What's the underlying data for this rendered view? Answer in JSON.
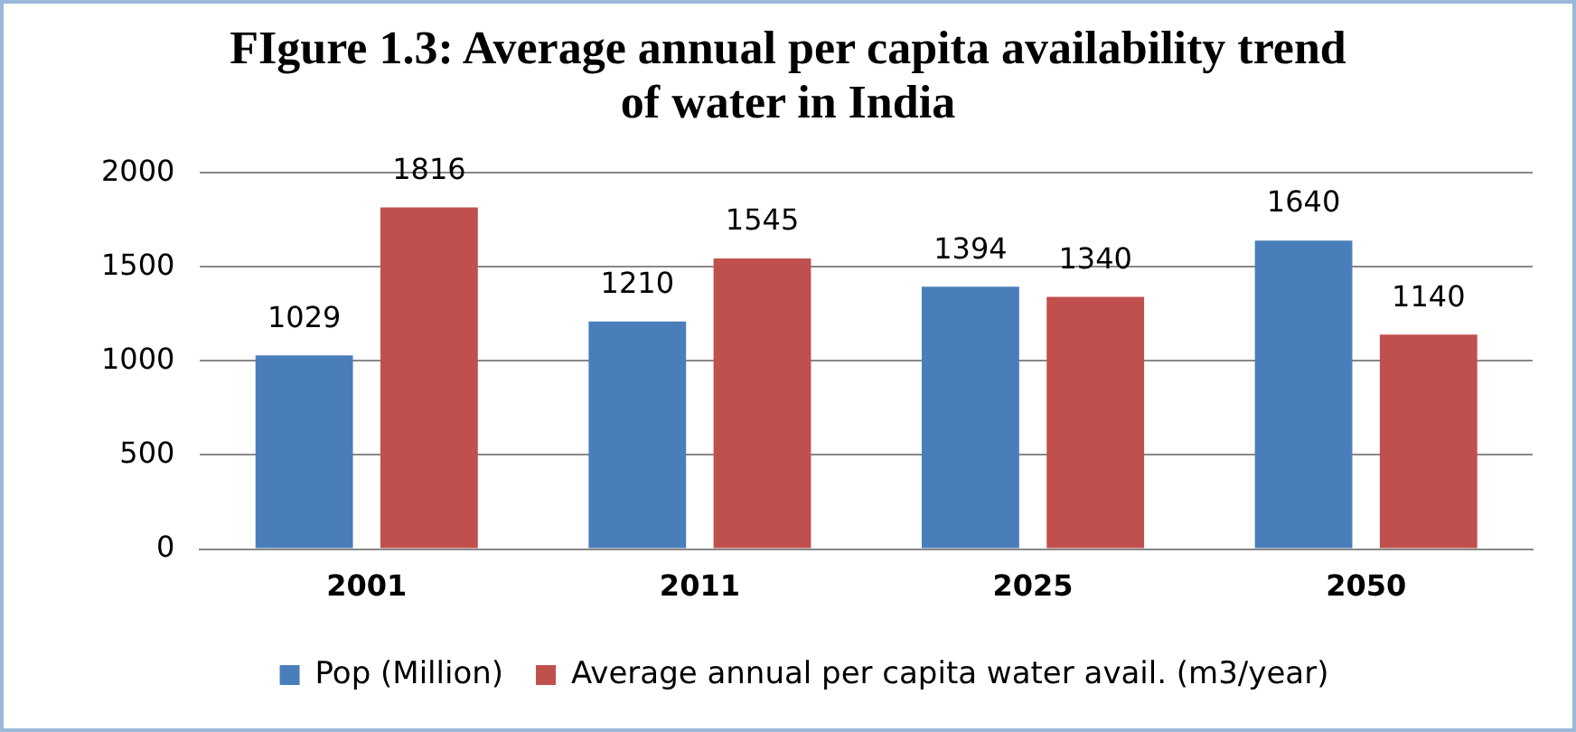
{
  "chart_data": {
    "type": "bar",
    "title": "FIgure 1.3: Average annual per capita availability trend of water in India",
    "categories": [
      "2001",
      "2011",
      "2025",
      "2050"
    ],
    "series": [
      {
        "name": "Pop (Million)",
        "color": "#4a7ebb",
        "values": [
          1029,
          1210,
          1394,
          1640
        ]
      },
      {
        "name": "Average annual per capita water avail. (m3/year)",
        "color": "#c0504d",
        "values": [
          1816,
          1545,
          1340,
          1140
        ]
      }
    ],
    "ylim": [
      0,
      2000
    ],
    "yticks": [
      0,
      500,
      1000,
      1500,
      2000
    ],
    "grid": "y",
    "legend": "bottom",
    "data_labels": true
  }
}
